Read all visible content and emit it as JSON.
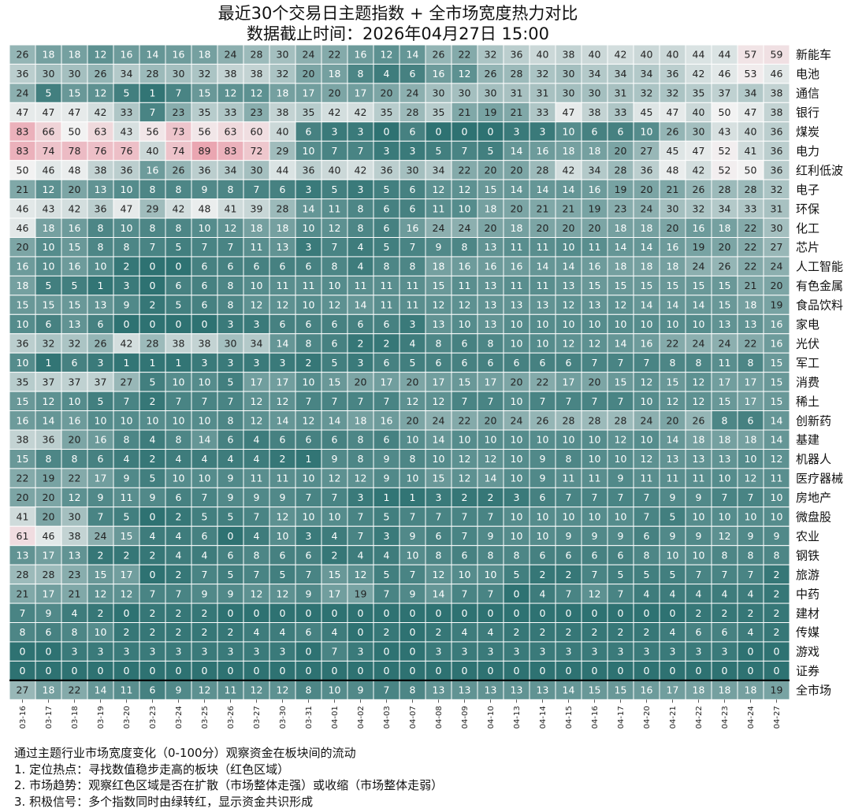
{
  "title": "最近30个交易日主题指数 + 全市场宽度热力对比",
  "subtitle": "数据截止时间：2026年04月27日 15:00",
  "notes": [
    "通过主题行业市场宽度变化（0-100分）观察资金在板块间的流动",
    "1. 定位热点：寻找数值稳步走高的板块（红色区域）",
    "2. 市场趋势：观察红色区域是否在扩散（市场整体走强）或收缩（市场整体走弱）",
    "3. 积极信号：多个指数同时由绿转红，显示资金共识形成"
  ],
  "colors": {
    "low": "#2e7272",
    "mid": "#f2f2f2",
    "high": "#e8909f",
    "separator": "#000000"
  },
  "chart_data": {
    "type": "heatmap",
    "title": "最近30个交易日主题指数 + 全市场宽度热力对比",
    "value_range": [
      0,
      100
    ],
    "x": [
      "03-16",
      "03-17",
      "03-18",
      "03-19",
      "03-20",
      "03-23",
      "03-24",
      "03-25",
      "03-26",
      "03-27",
      "03-30",
      "03-31",
      "04-01",
      "04-02",
      "04-03",
      "04-07",
      "04-08",
      "04-09",
      "04-10",
      "04-13",
      "04-14",
      "04-15",
      "04-16",
      "04-17",
      "04-20",
      "04-21",
      "04-22",
      "04-23",
      "04-24",
      "04-27"
    ],
    "rows": [
      {
        "name": "新能车",
        "values": [
          26,
          18,
          18,
          12,
          16,
          14,
          16,
          18,
          24,
          28,
          30,
          24,
          22,
          16,
          12,
          14,
          26,
          22,
          32,
          36,
          40,
          38,
          40,
          42,
          40,
          40,
          44,
          44,
          57,
          59
        ]
      },
      {
        "name": "电池",
        "values": [
          36,
          30,
          30,
          26,
          34,
          28,
          30,
          32,
          38,
          38,
          32,
          20,
          18,
          8,
          4,
          6,
          16,
          12,
          26,
          28,
          32,
          30,
          34,
          34,
          34,
          36,
          42,
          46,
          53,
          46
        ]
      },
      {
        "name": "通信",
        "values": [
          24,
          5,
          15,
          12,
          5,
          1,
          7,
          15,
          12,
          12,
          18,
          17,
          20,
          17,
          20,
          24,
          30,
          30,
          30,
          31,
          31,
          30,
          30,
          31,
          32,
          32,
          35,
          37,
          34,
          38
        ]
      },
      {
        "name": "银行",
        "values": [
          47,
          47,
          47,
          42,
          33,
          7,
          23,
          35,
          33,
          23,
          38,
          35,
          42,
          42,
          35,
          28,
          35,
          21,
          19,
          21,
          33,
          47,
          38,
          33,
          45,
          47,
          40,
          50,
          47,
          38
        ]
      },
      {
        "name": "煤炭",
        "values": [
          83,
          66,
          50,
          63,
          43,
          56,
          73,
          56,
          63,
          60,
          40,
          6,
          3,
          3,
          0,
          6,
          0,
          0,
          0,
          3,
          3,
          10,
          6,
          6,
          10,
          26,
          30,
          43,
          40,
          36
        ]
      },
      {
        "name": "电力",
        "values": [
          83,
          74,
          78,
          76,
          76,
          40,
          74,
          89,
          83,
          72,
          29,
          10,
          7,
          7,
          3,
          3,
          5,
          7,
          5,
          14,
          16,
          18,
          18,
          20,
          27,
          45,
          47,
          52,
          41,
          36
        ]
      },
      {
        "name": "红利低波",
        "values": [
          50,
          46,
          48,
          38,
          36,
          16,
          26,
          36,
          34,
          30,
          44,
          36,
          40,
          42,
          36,
          30,
          34,
          22,
          20,
          20,
          28,
          42,
          34,
          28,
          36,
          48,
          42,
          52,
          50,
          36
        ]
      },
      {
        "name": "电子",
        "values": [
          21,
          12,
          20,
          13,
          10,
          8,
          8,
          9,
          8,
          7,
          6,
          3,
          5,
          3,
          5,
          6,
          12,
          12,
          15,
          14,
          14,
          14,
          16,
          19,
          20,
          21,
          26,
          28,
          28,
          32
        ]
      },
      {
        "name": "环保",
        "values": [
          46,
          43,
          42,
          36,
          47,
          29,
          42,
          48,
          41,
          39,
          28,
          14,
          11,
          8,
          6,
          6,
          11,
          10,
          18,
          20,
          21,
          21,
          19,
          23,
          24,
          30,
          32,
          34,
          33,
          31
        ]
      },
      {
        "name": "化工",
        "values": [
          46,
          18,
          16,
          8,
          10,
          8,
          8,
          10,
          12,
          18,
          18,
          10,
          12,
          8,
          6,
          16,
          24,
          24,
          20,
          18,
          20,
          20,
          20,
          18,
          18,
          20,
          16,
          18,
          22,
          30
        ]
      },
      {
        "name": "芯片",
        "values": [
          20,
          10,
          15,
          8,
          8,
          7,
          5,
          7,
          7,
          11,
          13,
          3,
          7,
          4,
          5,
          7,
          9,
          8,
          13,
          11,
          11,
          10,
          11,
          14,
          14,
          16,
          19,
          20,
          22,
          27
        ]
      },
      {
        "name": "人工智能",
        "values": [
          16,
          10,
          16,
          10,
          2,
          0,
          0,
          6,
          6,
          6,
          6,
          6,
          8,
          4,
          8,
          8,
          18,
          16,
          16,
          16,
          14,
          14,
          16,
          18,
          18,
          18,
          24,
          26,
          22,
          24
        ]
      },
      {
        "name": "有色金属",
        "values": [
          18,
          5,
          5,
          1,
          3,
          0,
          6,
          6,
          8,
          10,
          11,
          11,
          10,
          11,
          11,
          11,
          15,
          11,
          13,
          11,
          11,
          13,
          15,
          15,
          15,
          15,
          15,
          15,
          21,
          20
        ]
      },
      {
        "name": "食品饮料",
        "values": [
          15,
          15,
          15,
          13,
          9,
          2,
          5,
          6,
          8,
          12,
          12,
          10,
          12,
          14,
          11,
          11,
          12,
          12,
          13,
          13,
          13,
          12,
          13,
          12,
          14,
          14,
          14,
          15,
          18,
          19
        ]
      },
      {
        "name": "家电",
        "values": [
          10,
          6,
          13,
          6,
          0,
          0,
          0,
          0,
          3,
          3,
          6,
          6,
          6,
          6,
          6,
          3,
          13,
          10,
          13,
          10,
          10,
          10,
          10,
          10,
          10,
          10,
          10,
          13,
          13,
          16
        ]
      },
      {
        "name": "光伏",
        "values": [
          36,
          32,
          32,
          26,
          42,
          28,
          38,
          38,
          30,
          34,
          14,
          8,
          6,
          2,
          2,
          4,
          8,
          6,
          8,
          10,
          10,
          12,
          12,
          14,
          16,
          22,
          24,
          24,
          22,
          16
        ]
      },
      {
        "name": "军工",
        "values": [
          10,
          1,
          6,
          3,
          1,
          1,
          1,
          3,
          3,
          3,
          3,
          2,
          5,
          3,
          6,
          5,
          6,
          6,
          6,
          6,
          6,
          6,
          7,
          7,
          7,
          8,
          8,
          11,
          8,
          15
        ]
      },
      {
        "name": "消费",
        "values": [
          35,
          37,
          37,
          37,
          27,
          5,
          10,
          10,
          5,
          17,
          17,
          10,
          15,
          20,
          17,
          20,
          17,
          15,
          17,
          20,
          22,
          17,
          20,
          15,
          12,
          15,
          12,
          17,
          17,
          15
        ]
      },
      {
        "name": "稀土",
        "values": [
          15,
          12,
          10,
          5,
          7,
          2,
          7,
          7,
          7,
          12,
          12,
          7,
          7,
          7,
          7,
          12,
          12,
          7,
          7,
          10,
          7,
          7,
          7,
          7,
          10,
          12,
          12,
          15,
          17,
          15
        ]
      },
      {
        "name": "创新药",
        "values": [
          16,
          14,
          16,
          10,
          10,
          10,
          10,
          10,
          8,
          12,
          14,
          12,
          14,
          18,
          16,
          20,
          24,
          22,
          20,
          24,
          26,
          28,
          28,
          28,
          24,
          20,
          26,
          8,
          6,
          14
        ]
      },
      {
        "name": "基建",
        "values": [
          38,
          36,
          20,
          16,
          8,
          4,
          8,
          14,
          6,
          4,
          6,
          6,
          6,
          8,
          6,
          10,
          14,
          10,
          10,
          10,
          10,
          10,
          10,
          12,
          10,
          14,
          18,
          18,
          18,
          14
        ]
      },
      {
        "name": "机器人",
        "values": [
          15,
          8,
          8,
          6,
          4,
          2,
          4,
          4,
          4,
          4,
          2,
          1,
          9,
          8,
          9,
          8,
          10,
          12,
          12,
          10,
          9,
          8,
          10,
          10,
          12,
          13,
          13,
          13,
          10,
          12
        ]
      },
      {
        "name": "医疗器械",
        "values": [
          22,
          19,
          22,
          17,
          9,
          5,
          10,
          10,
          9,
          11,
          11,
          10,
          12,
          12,
          9,
          10,
          15,
          12,
          14,
          10,
          9,
          11,
          11,
          9,
          11,
          11,
          11,
          10,
          12,
          11
        ]
      },
      {
        "name": "房地产",
        "values": [
          20,
          20,
          12,
          9,
          11,
          9,
          6,
          7,
          9,
          9,
          9,
          7,
          7,
          3,
          1,
          1,
          3,
          2,
          2,
          3,
          6,
          7,
          7,
          7,
          7,
          9,
          9,
          7,
          7,
          10
        ]
      },
      {
        "name": "微盘股",
        "values": [
          41,
          20,
          30,
          7,
          5,
          0,
          2,
          5,
          5,
          7,
          12,
          10,
          10,
          7,
          5,
          7,
          7,
          7,
          7,
          10,
          10,
          10,
          10,
          10,
          7,
          5,
          10,
          10,
          10,
          10
        ]
      },
      {
        "name": "农业",
        "values": [
          61,
          46,
          38,
          24,
          15,
          4,
          4,
          6,
          0,
          4,
          10,
          3,
          4,
          7,
          3,
          9,
          6,
          7,
          9,
          10,
          10,
          9,
          9,
          9,
          6,
          9,
          9,
          12,
          9,
          9
        ]
      },
      {
        "name": "钢铁",
        "values": [
          13,
          17,
          13,
          2,
          2,
          2,
          4,
          4,
          6,
          8,
          6,
          6,
          2,
          4,
          4,
          10,
          8,
          6,
          8,
          8,
          6,
          6,
          6,
          6,
          8,
          10,
          10,
          8,
          8,
          8
        ]
      },
      {
        "name": "旅游",
        "values": [
          28,
          28,
          23,
          15,
          17,
          0,
          2,
          7,
          5,
          7,
          5,
          7,
          15,
          12,
          5,
          7,
          12,
          10,
          10,
          5,
          2,
          2,
          7,
          5,
          5,
          5,
          7,
          7,
          7,
          2
        ]
      },
      {
        "name": "中药",
        "values": [
          21,
          17,
          21,
          12,
          12,
          7,
          7,
          9,
          9,
          12,
          12,
          9,
          17,
          19,
          7,
          9,
          14,
          7,
          7,
          0,
          4,
          7,
          12,
          7,
          4,
          4,
          4,
          4,
          4,
          2
        ]
      },
      {
        "name": "建材",
        "values": [
          7,
          9,
          4,
          2,
          0,
          2,
          2,
          2,
          0,
          0,
          0,
          0,
          0,
          0,
          0,
          0,
          0,
          0,
          0,
          0,
          0,
          0,
          0,
          0,
          0,
          0,
          2,
          2,
          2,
          2
        ]
      },
      {
        "name": "传媒",
        "values": [
          8,
          6,
          8,
          10,
          2,
          2,
          2,
          2,
          2,
          4,
          4,
          6,
          4,
          0,
          2,
          0,
          2,
          4,
          4,
          2,
          2,
          2,
          2,
          2,
          2,
          4,
          6,
          6,
          4,
          2
        ]
      },
      {
        "name": "游戏",
        "values": [
          0,
          0,
          3,
          3,
          3,
          3,
          3,
          3,
          3,
          3,
          3,
          0,
          7,
          3,
          0,
          0,
          3,
          3,
          3,
          3,
          3,
          3,
          3,
          3,
          3,
          3,
          3,
          3,
          0,
          0
        ]
      },
      {
        "name": "证券",
        "values": [
          0,
          0,
          0,
          0,
          0,
          0,
          0,
          0,
          0,
          0,
          0,
          0,
          0,
          0,
          0,
          0,
          0,
          0,
          0,
          0,
          0,
          0,
          0,
          0,
          0,
          0,
          0,
          0,
          0,
          0
        ]
      },
      {
        "name": "全市场",
        "values": [
          27,
          18,
          22,
          14,
          11,
          6,
          9,
          12,
          11,
          12,
          12,
          8,
          10,
          9,
          7,
          8,
          13,
          13,
          13,
          13,
          13,
          14,
          15,
          15,
          16,
          17,
          18,
          18,
          18,
          19
        ]
      }
    ]
  }
}
